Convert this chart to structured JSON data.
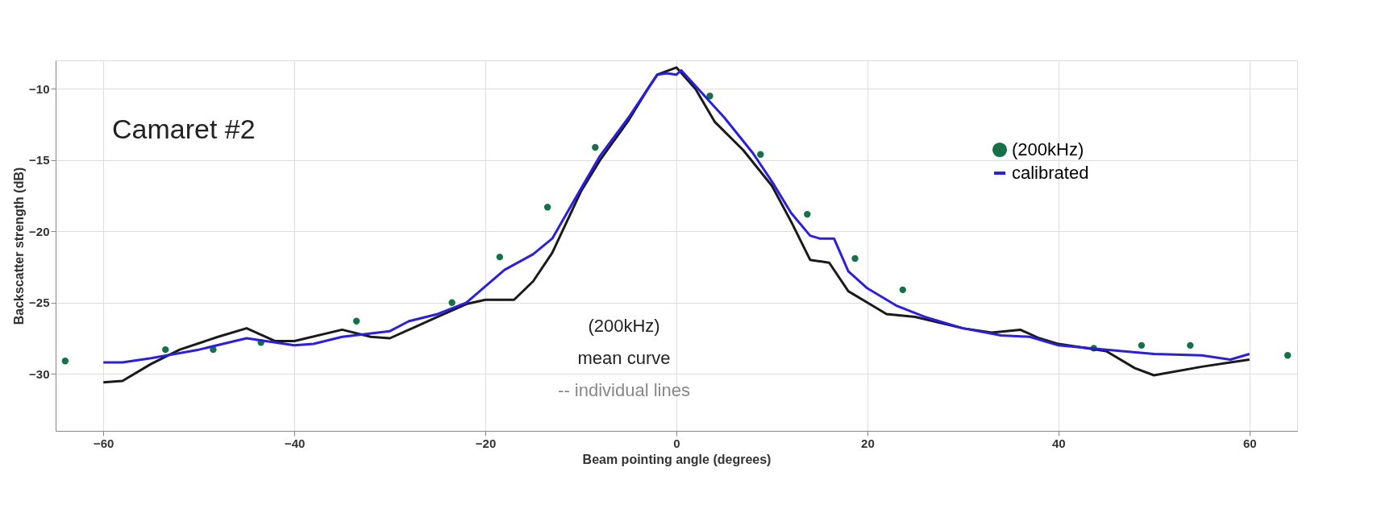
{
  "chart_data": {
    "type": "line",
    "xlabel": "Beam pointing angle (degrees)",
    "ylabel": "Backscatter strength (dB)",
    "xlim": [
      -65,
      65
    ],
    "ylim": [
      -34,
      -8
    ],
    "xticks": [
      -60,
      -40,
      -20,
      0,
      20,
      40,
      60
    ],
    "yticks": [
      -30,
      -25,
      -20,
      -15,
      -10
    ],
    "grid": true,
    "legend": "top right",
    "annotations": [
      "Camaret #2",
      "(200kHz)\nmean curve",
      "-- individual lines"
    ],
    "series": [
      {
        "type": "scatter",
        "name": "(200kHz)",
        "color": "#16704a",
        "marker": "circle",
        "x": [
          -64,
          -53.5,
          -48.5,
          -43.5,
          -33.5,
          -23.5,
          -18.5,
          -13.5,
          -8.5,
          3.5,
          8.8,
          13.7,
          18.7,
          23.7,
          43.7,
          48.7,
          53.8,
          64
        ],
        "values": [
          -29.1,
          -28.3,
          -28.3,
          -27.8,
          -26.3,
          -25.0,
          -21.8,
          -18.3,
          -14.1,
          -10.5,
          -14.6,
          -18.8,
          -21.9,
          -24.1,
          -28.2,
          -28.0,
          -28.0,
          -28.7
        ]
      },
      {
        "color": "#1a1a1a",
        "x": [
          -60,
          -58,
          -55,
          -52,
          -48,
          -45,
          -42,
          -40,
          -35,
          -32,
          -30,
          -25,
          -22,
          -20,
          -17,
          -15,
          -13,
          -10,
          -8,
          -5,
          -3,
          -2,
          0,
          2,
          4,
          7,
          10,
          12,
          14,
          16,
          18,
          20,
          22,
          25,
          30,
          33,
          36,
          38,
          40,
          45,
          48,
          50,
          55,
          58,
          60
        ],
        "values": [
          -30.6,
          -30.5,
          -29.3,
          -28.3,
          -27.4,
          -26.8,
          -27.7,
          -27.7,
          -26.9,
          -27.4,
          -27.5,
          -26.0,
          -25.1,
          -24.8,
          -24.8,
          -23.5,
          -21.5,
          -17.2,
          -15.0,
          -12.2,
          -10.0,
          -9.0,
          -8.5,
          -10.0,
          -12.3,
          -14.3,
          -16.8,
          -19.3,
          -22.0,
          -22.2,
          -24.2,
          -25.0,
          -25.8,
          -26.0,
          -26.8,
          -27.1,
          -26.9,
          -27.5,
          -27.9,
          -28.4,
          -29.6,
          -30.1,
          -29.5,
          -29.2,
          -29.0
        ]
      },
      {
        "name": "calibrated",
        "color": "#2a1fe0",
        "x": [
          -60,
          -58,
          -55,
          -50,
          -45,
          -40,
          -38,
          -35,
          -30,
          -28,
          -25,
          -22,
          -18,
          -15,
          -13,
          -10,
          -8,
          -5,
          -3,
          -2,
          -1,
          0,
          0.5,
          2,
          5,
          8,
          10,
          12,
          14,
          15,
          16.5,
          18,
          20,
          23,
          26,
          30,
          34,
          37,
          40,
          45,
          50,
          55,
          58,
          60
        ],
        "values": [
          -29.2,
          -29.2,
          -28.9,
          -28.3,
          -27.5,
          -28.0,
          -27.9,
          -27.4,
          -27.0,
          -26.3,
          -25.8,
          -25.0,
          -22.7,
          -21.6,
          -20.5,
          -17.0,
          -14.7,
          -12.0,
          -10.0,
          -9.0,
          -8.9,
          -9.0,
          -8.7,
          -9.8,
          -12.0,
          -14.5,
          -16.5,
          -18.7,
          -20.3,
          -20.5,
          -20.5,
          -22.8,
          -24.0,
          -25.2,
          -26.0,
          -26.8,
          -27.3,
          -27.4,
          -28.0,
          -28.3,
          -28.6,
          -28.7,
          -29.0,
          -28.6
        ]
      }
    ]
  }
}
